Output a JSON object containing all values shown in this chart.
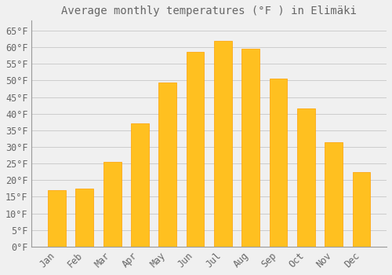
{
  "title": "Average monthly temperatures (°F ) in Elimäki",
  "months": [
    "Jan",
    "Feb",
    "Mar",
    "Apr",
    "May",
    "Jun",
    "Jul",
    "Aug",
    "Sep",
    "Oct",
    "Nov",
    "Dec"
  ],
  "values": [
    17.0,
    17.5,
    25.5,
    37.0,
    49.5,
    58.5,
    62.0,
    59.5,
    50.5,
    41.5,
    31.5,
    22.5
  ],
  "bar_color": "#FFC020",
  "bar_edge_color": "#FFA000",
  "background_color": "#F0F0F0",
  "grid_color": "#CCCCCC",
  "text_color": "#666666",
  "ylim": [
    0,
    68
  ],
  "yticks": [
    0,
    5,
    10,
    15,
    20,
    25,
    30,
    35,
    40,
    45,
    50,
    55,
    60,
    65
  ],
  "title_fontsize": 10,
  "tick_fontsize": 8.5,
  "bar_width": 0.65
}
